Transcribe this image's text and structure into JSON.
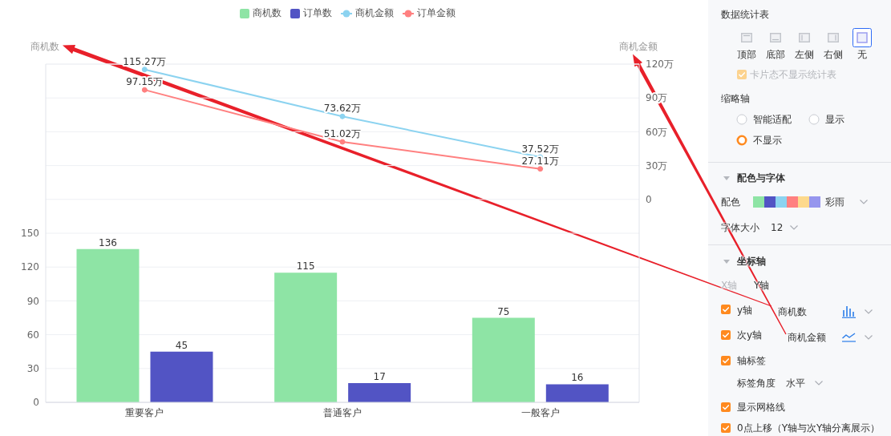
{
  "chart_data": [
    {
      "type": "bar",
      "categories": [
        "重要客户",
        "普通客户",
        "一般客户"
      ],
      "ylabel": "商机数",
      "y2label": "商机金额",
      "series": [
        {
          "name": "商机数",
          "type": "bar",
          "color": "#8ee4a5",
          "values": [
            136,
            115,
            75
          ]
        },
        {
          "name": "订单数",
          "type": "bar",
          "color": "#5254c4",
          "values": [
            45,
            17,
            16
          ]
        },
        {
          "name": "商机金额",
          "type": "line",
          "axis": "y2",
          "color": "#8cd3f0",
          "marker": "circle",
          "values": [
            115.27,
            73.62,
            37.52
          ],
          "value_labels": [
            "115.27万",
            "73.62万",
            "37.52万"
          ]
        },
        {
          "name": "订单金额",
          "type": "line",
          "axis": "y2",
          "color": "#ff8080",
          "marker": "circle",
          "values": [
            97.15,
            51.02,
            27.11
          ],
          "value_labels": [
            "97.15万",
            "51.02万",
            "27.11万"
          ]
        }
      ],
      "ylim": [
        0,
        300
      ],
      "yticks": [
        0,
        30,
        60,
        90,
        120,
        150
      ],
      "y2lim": [
        -180,
        120
      ],
      "y2ticks": [
        0,
        {
          "value": 30,
          "label": "30万"
        },
        {
          "value": 60,
          "label": "60万"
        },
        {
          "value": 90,
          "label": "90万"
        },
        {
          "value": 120,
          "label": "120万"
        }
      ],
      "data_labels": true,
      "grid": "y",
      "legend": "top"
    },
    {
      "type": "other",
      "annotations": [
        "数据统计表",
        "顶部",
        "底部",
        "左侧",
        "右侧",
        "无",
        "卡片态不显示统计表",
        "缩略轴",
        "智能适配",
        "显示",
        "不显示",
        "配色与字体",
        "配色",
        "彩雨",
        "字体大小",
        "12",
        "坐标轴",
        "X轴",
        "Y轴",
        "y轴",
        "商机数",
        "次y轴",
        "商机金额",
        "轴标签",
        "标签角度",
        "水平",
        "显示网格线",
        "0点上移（Y轴与次Y轴分离展示）"
      ]
    }
  ]
}
